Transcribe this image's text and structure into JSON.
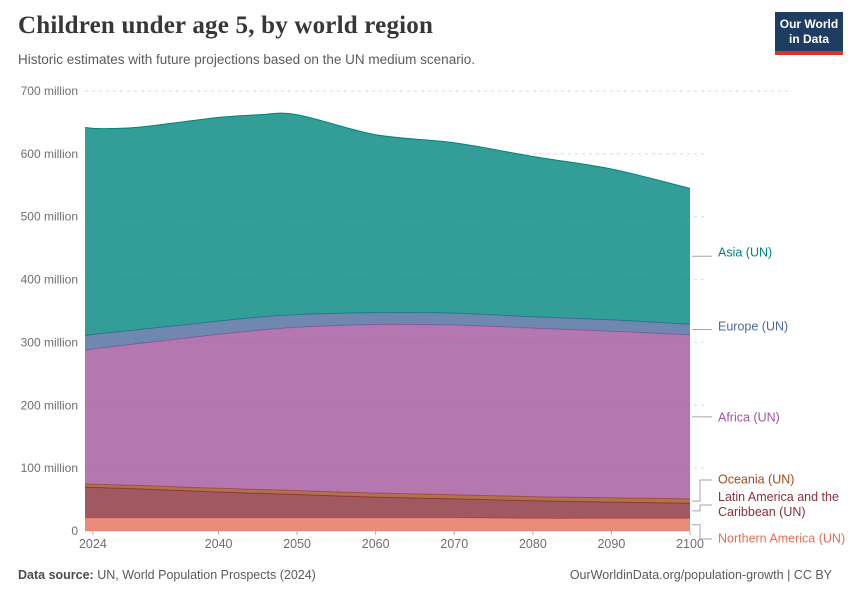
{
  "header": {
    "title": "Children under age 5, by world region",
    "subtitle": "Historic estimates with future projections based on the UN medium scenario.",
    "logo": {
      "line1": "Our World",
      "line2": "in Data"
    }
  },
  "footer": {
    "source_label": "Data source:",
    "source_text": "UN, World Population Prospects (2024)",
    "right_text": "OurWorldinData.org/population-growth | CC BY"
  },
  "colors": {
    "asia": "#00847E",
    "europe": "#4C6A9C",
    "africa": "#A2559C",
    "oceania": "#9C4E22",
    "latin_america": "#883039",
    "northern_america": "#E56E5A",
    "gridline": "#d9d9d9",
    "axis_text": "#6e6e6e",
    "logo_bg": "#1d3d63",
    "logo_bar": "#d8352a"
  },
  "chart_data": {
    "type": "area",
    "stacked": true,
    "unit": "million",
    "grid": "dashed-horizontal",
    "legend_position": "right-edge-labels",
    "xlim": [
      2023,
      2100
    ],
    "ylim": [
      0,
      700
    ],
    "x": [
      2023,
      2025,
      2030,
      2040,
      2045,
      2050,
      2060,
      2070,
      2080,
      2090,
      2100
    ],
    "x_ticks": [
      2024,
      2040,
      2050,
      2060,
      2070,
      2080,
      2090,
      2100
    ],
    "y_ticks": [
      {
        "value": 0,
        "label": "0"
      },
      {
        "value": 100,
        "label": "100 million"
      },
      {
        "value": 200,
        "label": "200 million"
      },
      {
        "value": 300,
        "label": "300 million"
      },
      {
        "value": 400,
        "label": "400 million"
      },
      {
        "value": 500,
        "label": "500 million"
      },
      {
        "value": 600,
        "label": "600 million"
      },
      {
        "value": 700,
        "label": "700 million"
      }
    ],
    "series": [
      {
        "id": "northern-america",
        "label": "Northern America (UN)",
        "color": "#E56E5A",
        "label_y": 539,
        "values": [
          21,
          21,
          21,
          21,
          21,
          21,
          21,
          21,
          20,
          20,
          20
        ]
      },
      {
        "id": "latin-america",
        "label": "Latin America and the Caribbean (UN)",
        "color": "#883039",
        "label_y": 505,
        "values": [
          49,
          48,
          46,
          41,
          39,
          37,
          33,
          30,
          28,
          26,
          24
        ]
      },
      {
        "id": "oceania",
        "label": "Oceania (UN)",
        "color": "#9C4E22",
        "label_y": 480,
        "values": [
          5,
          5.2,
          5.5,
          6,
          6.2,
          6.3,
          6.5,
          6.7,
          6.8,
          6.9,
          7
        ]
      },
      {
        "id": "africa",
        "label": "Africa (UN)",
        "color": "#A2559C",
        "label_y": 418,
        "values": [
          213,
          217,
          226,
          245,
          253,
          260,
          268,
          270,
          268,
          265,
          261
        ]
      },
      {
        "id": "europe",
        "label": "Europe (UN)",
        "color": "#4C6A9C",
        "label_y": 327,
        "values": [
          23,
          23,
          22,
          21,
          21,
          20,
          19,
          19,
          18,
          18,
          17
        ]
      },
      {
        "id": "asia",
        "label": "Asia (UN)",
        "color": "#00847E",
        "label_y": 253,
        "values": [
          331,
          326,
          322,
          324,
          322,
          318,
          283,
          271,
          255,
          240,
          216
        ]
      }
    ]
  }
}
